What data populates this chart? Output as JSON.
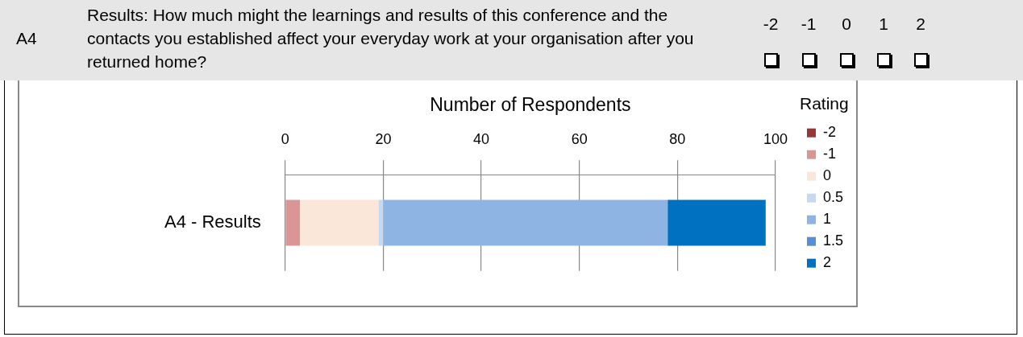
{
  "chart_data": {
    "type": "bar",
    "orientation": "horizontal",
    "stacked": true,
    "title": "Results: How much might the learnings and results of this conference and the contacts you established affect your everyday work at your organisation after you returned home?",
    "annotations": [
      "A4",
      "-2",
      "-1",
      "0",
      "1",
      "2"
    ],
    "xlabel": "Number of Respondents",
    "legend_title": "Rating",
    "legend": "right",
    "grid": "x",
    "categories": [
      "A4 - Results"
    ],
    "xlim": [
      0,
      100
    ],
    "xticks": [
      0,
      20,
      40,
      60,
      80,
      100
    ],
    "series": [
      {
        "name": "-2",
        "color": "#953735",
        "values": [
          0
        ]
      },
      {
        "name": "-1",
        "color": "#d99694",
        "values": [
          3
        ]
      },
      {
        "name": "0",
        "color": "#fbe7d9",
        "values": [
          16
        ]
      },
      {
        "name": "0.5",
        "color": "#c6d9f1",
        "values": [
          1
        ]
      },
      {
        "name": "1",
        "color": "#8eb4e3",
        "values": [
          58
        ]
      },
      {
        "name": "1.5",
        "color": "#558ed5",
        "values": [
          0
        ]
      },
      {
        "name": "2",
        "color": "#0070c0",
        "values": [
          20
        ]
      }
    ]
  }
}
